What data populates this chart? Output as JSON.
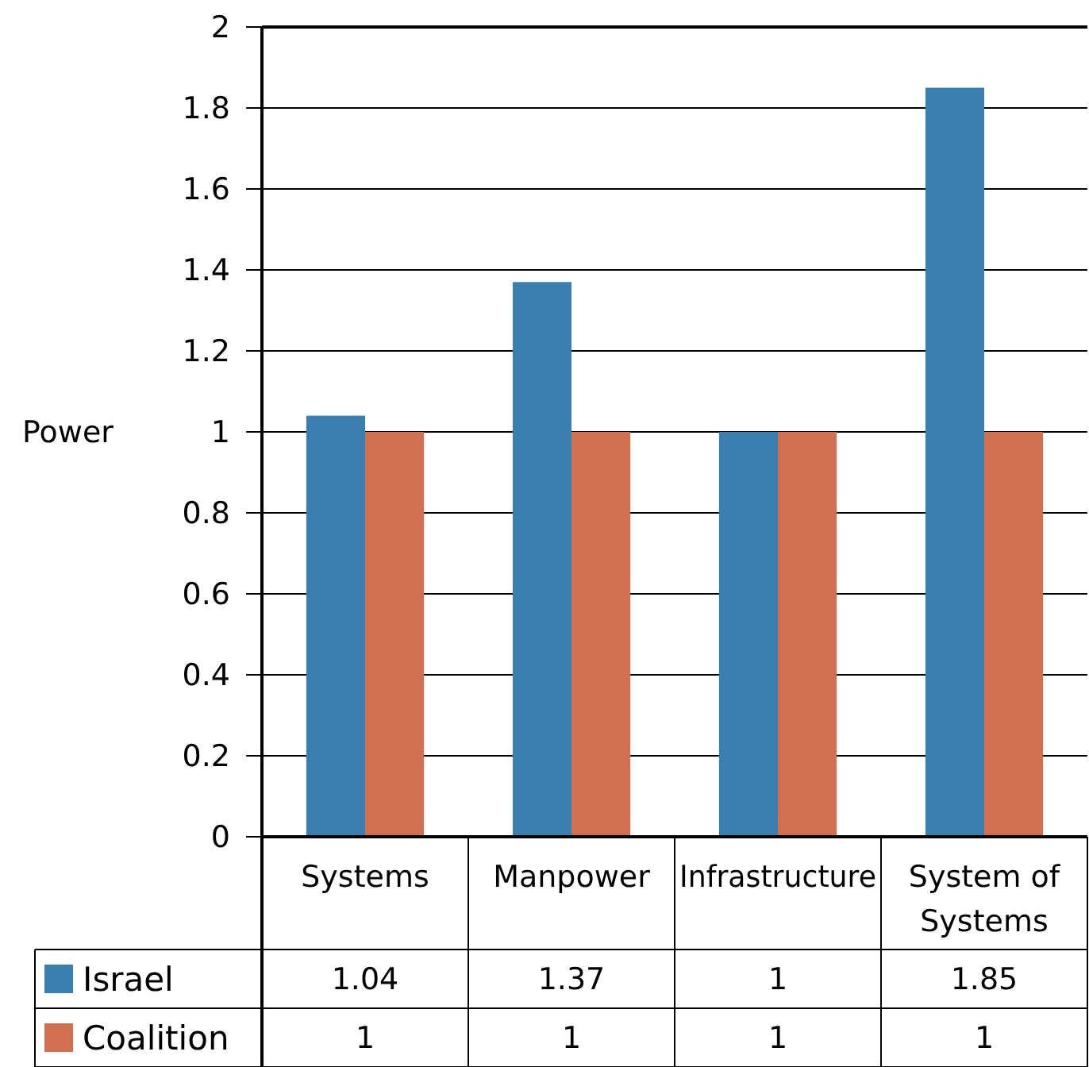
{
  "chart_data": {
    "type": "bar",
    "ylabel": "Power",
    "categories": [
      "Systems",
      "Manpower",
      "Infrastructure",
      "System of Systems"
    ],
    "series": [
      {
        "name": "Israel",
        "color": "#3a7fb0",
        "values": [
          1.04,
          1.37,
          1,
          1.85
        ]
      },
      {
        "name": "Coalition",
        "color": "#d07050",
        "values": [
          1,
          1,
          1,
          1
        ]
      }
    ],
    "ylim": [
      0,
      2
    ],
    "yticks": [
      0,
      0.2,
      0.4,
      0.6,
      0.8,
      1,
      1.2,
      1.4,
      1.6,
      1.8,
      2
    ],
    "grid": "y",
    "legend": "bottom",
    "data_labels": true
  }
}
